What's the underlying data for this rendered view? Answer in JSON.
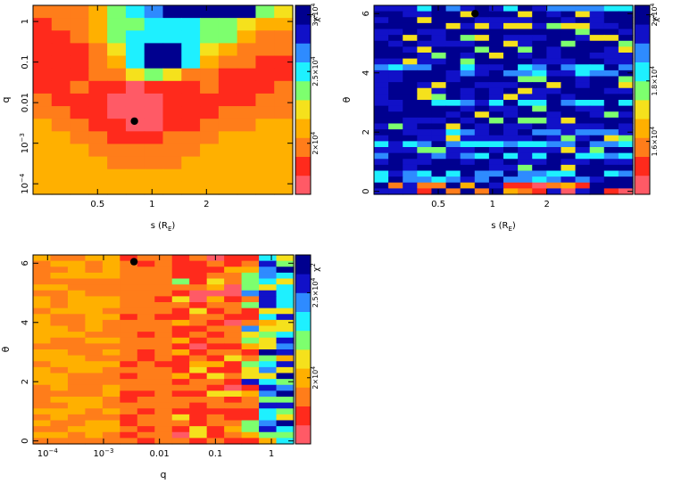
{
  "figure": {
    "background": "#ffffff",
    "frame_color": "#000000",
    "marker_color": "#000000"
  },
  "colormap": [
    "#ff5a66",
    "#ff2a1c",
    "#ff7d1a",
    "#ffb000",
    "#f5e11c",
    "#7dff6e",
    "#1ef0ff",
    "#2e8bff",
    "#1111c8",
    "#00008f"
  ],
  "chart_data": [
    {
      "id": "panel-s-q",
      "type": "heatmap",
      "xlabel": "s (R",
      "xlabel_sub": "E",
      "xlabel_tail": ")",
      "ylabel": "q",
      "x_scale": "log",
      "y_scale": "log",
      "xlim": [
        0.22,
        6.0
      ],
      "ylim": [
        5.5e-05,
        2.5
      ],
      "x_ticks": [
        {
          "value": 0.5,
          "label": "0.5"
        },
        {
          "value": 1,
          "label": "1"
        },
        {
          "value": 2,
          "label": "2"
        }
      ],
      "y_ticks": [
        {
          "value": 0.0001,
          "label": "10",
          "sup": "−4"
        },
        {
          "value": 0.001,
          "label": "10",
          "sup": "−3"
        },
        {
          "value": 0.01,
          "label": "0.01"
        },
        {
          "value": 0.1,
          "label": "0.1"
        },
        {
          "value": 1,
          "label": "1"
        }
      ],
      "colorbar": {
        "title": "χ",
        "title_sup": "2",
        "levels": [
          0.0,
          0.1,
          0.2,
          0.3,
          0.4,
          0.5,
          0.6,
          0.7,
          0.8,
          0.9,
          1.0
        ],
        "ticks": [
          {
            "value": 0.27,
            "label": "2×10",
            "sup": "4"
          },
          {
            "value": 0.65,
            "label": "2.5×10",
            "sup": "4"
          },
          {
            "value": 0.95,
            "label": "3×10",
            "sup": "4"
          }
        ]
      },
      "best_fit": {
        "x": 0.8,
        "y": 0.0035
      },
      "grid_shape": [
        14,
        15
      ],
      "z_norm": [
        [
          0.22,
          0.24,
          0.28,
          0.3,
          0.55,
          0.62,
          0.7,
          0.97,
          0.98,
          0.98,
          0.97,
          0.93,
          0.58,
          0.42
        ],
        [
          0.19,
          0.2,
          0.22,
          0.38,
          0.5,
          0.55,
          0.62,
          0.66,
          0.64,
          0.58,
          0.52,
          0.4,
          0.35,
          0.33
        ],
        [
          0.16,
          0.18,
          0.2,
          0.3,
          0.55,
          0.65,
          0.69,
          0.67,
          0.63,
          0.57,
          0.52,
          0.34,
          0.28,
          0.26
        ],
        [
          0.14,
          0.16,
          0.18,
          0.24,
          0.48,
          0.69,
          0.9,
          0.92,
          0.68,
          0.42,
          0.35,
          0.27,
          0.22,
          0.2
        ],
        [
          0.12,
          0.14,
          0.17,
          0.22,
          0.38,
          0.62,
          0.95,
          0.98,
          0.6,
          0.3,
          0.24,
          0.2,
          0.18,
          0.16
        ],
        [
          0.14,
          0.16,
          0.18,
          0.2,
          0.24,
          0.42,
          0.55,
          0.46,
          0.26,
          0.2,
          0.18,
          0.16,
          0.15,
          0.14
        ],
        [
          0.18,
          0.18,
          0.2,
          0.1,
          0.12,
          0.08,
          0.1,
          0.12,
          0.18,
          0.2,
          0.18,
          0.16,
          0.18,
          0.22
        ],
        [
          0.22,
          0.18,
          0.14,
          0.12,
          0.06,
          0.04,
          0.06,
          0.1,
          0.14,
          0.16,
          0.14,
          0.18,
          0.22,
          0.26
        ],
        [
          0.28,
          0.22,
          0.16,
          0.12,
          0.08,
          0.02,
          0.04,
          0.1,
          0.14,
          0.18,
          0.2,
          0.22,
          0.26,
          0.28
        ],
        [
          0.3,
          0.28,
          0.22,
          0.16,
          0.1,
          0.06,
          0.08,
          0.14,
          0.18,
          0.22,
          0.24,
          0.26,
          0.3,
          0.3
        ],
        [
          0.3,
          0.3,
          0.28,
          0.22,
          0.18,
          0.16,
          0.18,
          0.2,
          0.24,
          0.28,
          0.3,
          0.3,
          0.3,
          0.3
        ],
        [
          0.3,
          0.3,
          0.3,
          0.28,
          0.26,
          0.24,
          0.25,
          0.26,
          0.28,
          0.3,
          0.3,
          0.3,
          0.3,
          0.3
        ],
        [
          0.3,
          0.3,
          0.3,
          0.3,
          0.29,
          0.29,
          0.29,
          0.29,
          0.3,
          0.3,
          0.3,
          0.3,
          0.3,
          0.3
        ],
        [
          0.3,
          0.3,
          0.3,
          0.3,
          0.3,
          0.3,
          0.3,
          0.3,
          0.3,
          0.3,
          0.3,
          0.3,
          0.3,
          0.3
        ],
        [
          0.3,
          0.3,
          0.3,
          0.3,
          0.3,
          0.3,
          0.3,
          0.3,
          0.3,
          0.3,
          0.3,
          0.3,
          0.3,
          0.3
        ]
      ]
    },
    {
      "id": "panel-s-theta",
      "type": "heatmap",
      "xlabel": "s (R",
      "xlabel_sub": "E",
      "xlabel_tail": ")",
      "ylabel": "θ",
      "x_scale": "log",
      "y_scale": "linear",
      "xlim": [
        0.22,
        6.0
      ],
      "ylim": [
        -0.1,
        6.28
      ],
      "x_ticks": [
        {
          "value": 0.5,
          "label": "0.5"
        },
        {
          "value": 1,
          "label": "1"
        },
        {
          "value": 2,
          "label": "2"
        }
      ],
      "y_ticks": [
        {
          "value": 0,
          "label": "0"
        },
        {
          "value": 2,
          "label": "2"
        },
        {
          "value": 4,
          "label": "4"
        },
        {
          "value": 6,
          "label": "6"
        }
      ],
      "colorbar": {
        "title": "χ",
        "title_sup": "2",
        "levels": [
          0.0,
          0.1,
          0.2,
          0.3,
          0.4,
          0.5,
          0.6,
          0.7,
          0.8,
          0.9,
          1.0
        ],
        "ticks": [
          {
            "value": 0.28,
            "label": "1.6×10",
            "sup": "4"
          },
          {
            "value": 0.6,
            "label": "1.8×10",
            "sup": "4"
          },
          {
            "value": 0.95,
            "label": "2×10",
            "sup": "4"
          }
        ]
      },
      "best_fit": {
        "x": 0.8,
        "y": 6.0
      },
      "grid_shape": [
        18,
        32
      ],
      "z_norm_seed": 3,
      "z_norm_note": "Noisy field dominated by high-chi2 (blue) values with cyan/yellow streaks and red spots near theta=0"
    },
    {
      "id": "panel-q-theta",
      "type": "heatmap",
      "xlabel": "q",
      "ylabel": "θ",
      "x_scale": "log",
      "y_scale": "linear",
      "xlim": [
        5.5e-05,
        2.5
      ],
      "ylim": [
        -0.1,
        6.28
      ],
      "x_ticks": [
        {
          "value": 0.0001,
          "label": "10",
          "sup": "−4"
        },
        {
          "value": 0.001,
          "label": "10",
          "sup": "−3"
        },
        {
          "value": 0.01,
          "label": "0.01"
        },
        {
          "value": 0.1,
          "label": "0.1"
        },
        {
          "value": 1,
          "label": "1"
        }
      ],
      "y_ticks": [
        {
          "value": 0,
          "label": "0"
        },
        {
          "value": 2,
          "label": "2"
        },
        {
          "value": 4,
          "label": "4"
        },
        {
          "value": 6,
          "label": "6"
        }
      ],
      "colorbar": {
        "title": "χ",
        "title_sup": "2",
        "levels": [
          0.0,
          0.1,
          0.2,
          0.3,
          0.4,
          0.5,
          0.6,
          0.7,
          0.8,
          0.9,
          1.0
        ],
        "ticks": [
          {
            "value": 0.35,
            "label": "2×10",
            "sup": "4"
          },
          {
            "value": 0.8,
            "label": "2.5×10",
            "sup": "4"
          }
        ]
      },
      "best_fit": {
        "x": 0.0035,
        "y": 6.05
      },
      "grid_shape": [
        15,
        32
      ],
      "z_norm_seed": 7,
      "z_norm_note": "Orange-dominated left part, red band around q~0.01-0.3, mixed yellow/blue/cyan columns near q~1"
    }
  ]
}
